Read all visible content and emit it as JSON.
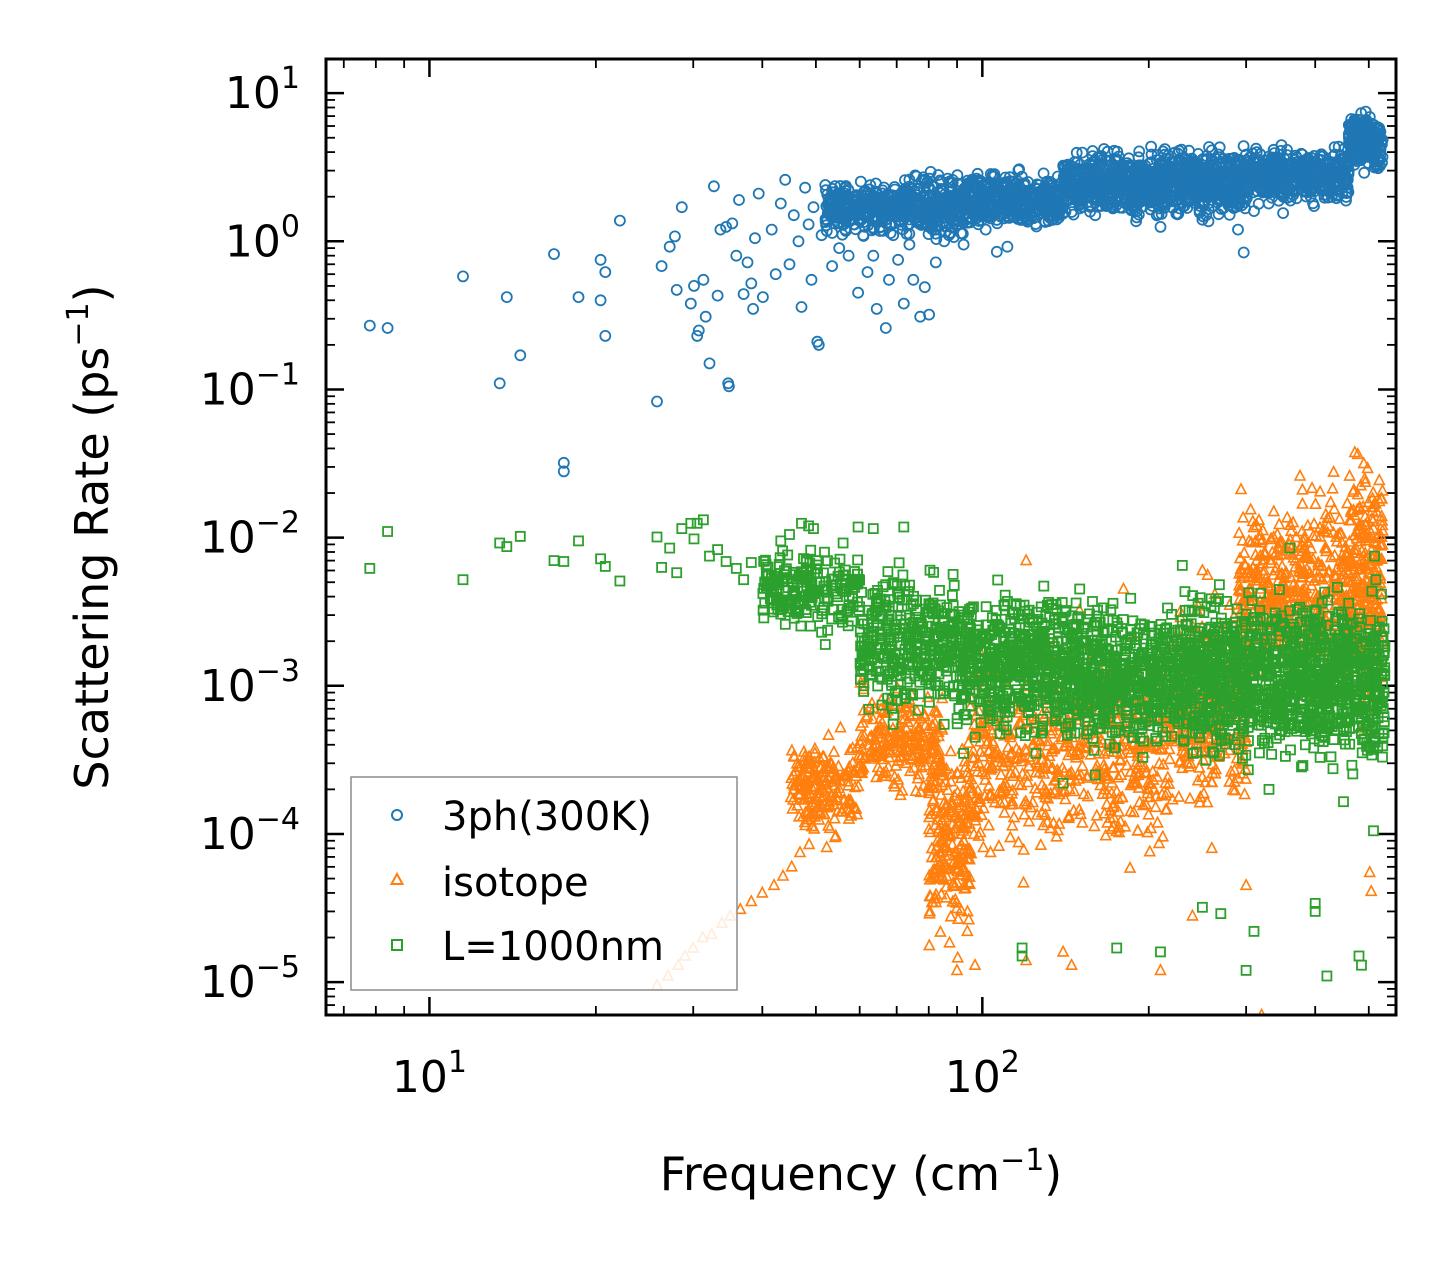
{
  "chart_data": {
    "type": "scatter",
    "title": "",
    "xlabel": "Frequency (cm",
    "xlabel_sup": "−1",
    "xlabel_tail": ")",
    "ylabel": "Scattering Rate (ps",
    "ylabel_sup": "−1",
    "ylabel_tail": ")",
    "xscale": "log",
    "yscale": "log",
    "xlim": [
      6.5,
      560
    ],
    "ylim": [
      6e-06,
      17
    ],
    "x_ticks": [
      {
        "value": 10,
        "base": "10",
        "exp": "1"
      },
      {
        "value": 100,
        "base": "10",
        "exp": "2"
      }
    ],
    "y_ticks": [
      {
        "value": 10,
        "base": "10",
        "exp": "1"
      },
      {
        "value": 1,
        "base": "10",
        "exp": "0"
      },
      {
        "value": 0.1,
        "base": "10",
        "exp": "−1"
      },
      {
        "value": 0.01,
        "base": "10",
        "exp": "−2"
      },
      {
        "value": 0.001,
        "base": "10",
        "exp": "−3"
      },
      {
        "value": 0.0001,
        "base": "10",
        "exp": "−4"
      },
      {
        "value": 1e-05,
        "base": "10",
        "exp": "−5"
      }
    ],
    "legend_position": "bottom-left",
    "series": [
      {
        "name": "3ph(300K)",
        "marker": "circle",
        "color": "#1f77b4",
        "points": [
          [
            7.8,
            0.27
          ],
          [
            8.4,
            0.26
          ],
          [
            11.5,
            0.58
          ],
          [
            13.4,
            0.11
          ],
          [
            13.8,
            0.42
          ],
          [
            14.6,
            0.17
          ],
          [
            16.8,
            0.82
          ],
          [
            17.5,
            0.032
          ],
          [
            17.5,
            0.028
          ],
          [
            18.6,
            0.42
          ],
          [
            20.4,
            0.75
          ],
          [
            20.4,
            0.4
          ],
          [
            20.8,
            0.23
          ],
          [
            20.8,
            0.62
          ],
          [
            22.1,
            1.38
          ],
          [
            25.8,
            0.083
          ],
          [
            26.3,
            0.68
          ],
          [
            27.2,
            0.92
          ],
          [
            27.8,
            1.08
          ],
          [
            28.0,
            0.47
          ],
          [
            28.6,
            1.7
          ],
          [
            29.7,
            0.38
          ],
          [
            30.1,
            0.5
          ],
          [
            30.5,
            0.23
          ],
          [
            30.7,
            0.25
          ],
          [
            31.3,
            0.55
          ],
          [
            31.6,
            0.31
          ],
          [
            32.1,
            0.15
          ],
          [
            32.7,
            2.35
          ],
          [
            33.2,
            0.43
          ],
          [
            33.6,
            1.2
          ],
          [
            34.4,
            1.25
          ],
          [
            34.7,
            0.11
          ],
          [
            34.8,
            0.105
          ],
          [
            35.3,
            1.32
          ],
          [
            35.9,
            0.8
          ],
          [
            36.3,
            1.9
          ],
          [
            37.0,
            0.44
          ],
          [
            37.6,
            0.72
          ],
          [
            38.2,
            0.52
          ],
          [
            38.5,
            0.35
          ],
          [
            38.8,
            1.05
          ],
          [
            39.4,
            2.1
          ],
          [
            40.1,
            0.42
          ],
          [
            41.6,
            1.2
          ],
          [
            42.3,
            0.6
          ],
          [
            43.2,
            1.8
          ],
          [
            44.0,
            2.6
          ],
          [
            44.8,
            0.7
          ],
          [
            45.6,
            1.5
          ],
          [
            46.5,
            1.0
          ],
          [
            47.1,
            0.36
          ],
          [
            47.8,
            2.3
          ],
          [
            48.5,
            1.3
          ],
          [
            49.1,
            0.55
          ],
          [
            49.5,
            1.7
          ],
          [
            50.3,
            0.21
          ],
          [
            50.6,
            0.2
          ],
          [
            51.2,
            1.1
          ],
          [
            52.0,
            2.4
          ],
          [
            53.5,
            0.68
          ],
          [
            54.4,
            1.5
          ],
          [
            55.1,
            0.9
          ],
          [
            56.0,
            2.0
          ],
          [
            57.3,
            0.8
          ],
          [
            58.5,
            1.3
          ],
          [
            59.6,
            0.45
          ],
          [
            60.9,
            1.1
          ],
          [
            62.0,
            0.62
          ],
          [
            63.5,
            0.8
          ],
          [
            64.4,
            0.35
          ],
          [
            65.7,
            1.4
          ],
          [
            66.9,
            0.26
          ],
          [
            67.8,
            0.55
          ],
          [
            69.0,
            1.1
          ],
          [
            70.4,
            0.75
          ],
          [
            72.1,
            0.38
          ],
          [
            73.8,
            0.95
          ],
          [
            75.0,
            0.55
          ],
          [
            77.2,
            0.31
          ],
          [
            78.7,
            0.49
          ],
          [
            80.1,
            0.32
          ],
          [
            82.4,
            0.72
          ],
          [
            85.3,
            1.0
          ],
          [
            88.0,
            1.25
          ],
          [
            92.5,
            0.95
          ],
          [
            97.1,
            1.5
          ],
          [
            101.4,
            1.2
          ],
          [
            106.2,
            0.85
          ],
          [
            111.0,
            0.92
          ],
          [
            118.0,
            1.4
          ],
          [
            125.0,
            1.6
          ],
          [
            130.0,
            1.35
          ],
          [
            140.0,
            1.7
          ],
          [
            150.0,
            1.9
          ],
          [
            160.0,
            1.5
          ],
          [
            175.0,
            2.0
          ],
          [
            190.0,
            2.2
          ],
          [
            210.0,
            1.25
          ],
          [
            230.0,
            1.8
          ],
          [
            250.0,
            1.4
          ],
          [
            270.0,
            2.4
          ],
          [
            290.0,
            1.2
          ],
          [
            297.0,
            0.84
          ],
          [
            310.0,
            1.6
          ],
          [
            330.0,
            2.5
          ],
          [
            350.0,
            1.55
          ],
          [
            380.0,
            2.2
          ],
          [
            420.0,
            2.6
          ],
          [
            460.0,
            3.0
          ]
        ],
        "bands": [
          {
            "x": [
              52,
              70
            ],
            "y": [
              1.0,
              2.8
            ],
            "n": 260
          },
          {
            "x": [
              70,
              95
            ],
            "y": [
              0.95,
              3.2
            ],
            "n": 320
          },
          {
            "x": [
              95,
              140
            ],
            "y": [
              1.05,
              3.3
            ],
            "n": 380
          },
          {
            "x": [
              140,
              200
            ],
            "y": [
              1.25,
              4.8
            ],
            "n": 420
          },
          {
            "x": [
              200,
              300
            ],
            "y": [
              1.25,
              5.0
            ],
            "n": 520
          },
          {
            "x": [
              300,
              460
            ],
            "y": [
              1.6,
              4.8
            ],
            "n": 480
          },
          {
            "x": [
              460,
              530
            ],
            "y": [
              2.6,
              8.2
            ],
            "n": 220
          }
        ]
      },
      {
        "name": "isotope",
        "marker": "triangle",
        "color": "#ff7f0e",
        "points": [
          [
            25.8,
            9.5e-06
          ],
          [
            27.0,
            1.1e-05
          ],
          [
            28.2,
            1.3e-05
          ],
          [
            29.0,
            1.5e-05
          ],
          [
            30.0,
            1.7e-05
          ],
          [
            31.2,
            2e-05
          ],
          [
            32.4,
            2.1e-05
          ],
          [
            33.8,
            2.5e-05
          ],
          [
            35.0,
            2.8e-05
          ],
          [
            36.5,
            3.1e-05
          ],
          [
            38.2,
            3.5e-05
          ],
          [
            40.0,
            4e-05
          ],
          [
            42.0,
            4.5e-05
          ],
          [
            43.6,
            5.2e-05
          ],
          [
            45.2,
            6e-05
          ],
          [
            46.8,
            7.5e-05
          ],
          [
            48.6,
            8.5e-05
          ],
          [
            90.0,
            1.2e-05
          ],
          [
            97.0,
            1.3e-05
          ],
          [
            120.0,
            1.4e-05
          ],
          [
            140.0,
            1.6e-05
          ],
          [
            145.0,
            1.3e-05
          ],
          [
            210.0,
            1.2e-05
          ],
          [
            240.0,
            2.8e-05
          ],
          [
            260.0,
            8e-05
          ],
          [
            300.0,
            4.5e-05
          ],
          [
            320.0,
            6e-06
          ],
          [
            502.0,
            5.5e-05
          ],
          [
            505.0,
            4.1e-05
          ],
          [
            330.0,
            0.0035
          ],
          [
            180.0,
            0.0045
          ],
          [
            250.0,
            0.006
          ],
          [
            280.0,
            0.0035
          ],
          [
            120.0,
            0.007
          ]
        ],
        "bands": [
          {
            "x": [
              45,
              60
            ],
            "y": [
              7e-05,
              0.0006
            ],
            "n": 200
          },
          {
            "x": [
              60,
              85
            ],
            "y": [
              0.00015,
              0.0012
            ],
            "n": 240
          },
          {
            "x": [
              80,
              95
            ],
            "y": [
              1.3e-05,
              0.0006
            ],
            "n": 220
          },
          {
            "x": [
              95,
              140
            ],
            "y": [
              4e-05,
              0.0025
            ],
            "n": 280
          },
          {
            "x": [
              140,
              220
            ],
            "y": [
              4e-05,
              0.0035
            ],
            "n": 300
          },
          {
            "x": [
              220,
              300
            ],
            "y": [
              0.0001,
              0.006
            ],
            "n": 320
          },
          {
            "x": [
              290,
              360
            ],
            "y": [
              0.0009,
              0.025
            ],
            "n": 220
          },
          {
            "x": [
              360,
              460
            ],
            "y": [
              0.0005,
              0.035
            ],
            "n": 260
          },
          {
            "x": [
              460,
              530
            ],
            "y": [
              0.0004,
              0.06
            ],
            "n": 260
          }
        ]
      },
      {
        "name": "L=1000nm",
        "marker": "square",
        "color": "#2ca02c",
        "points": [
          [
            7.8,
            0.0062
          ],
          [
            8.4,
            0.011
          ],
          [
            11.5,
            0.0052
          ],
          [
            13.4,
            0.0092
          ],
          [
            13.8,
            0.0087
          ],
          [
            14.6,
            0.0102
          ],
          [
            16.8,
            0.007
          ],
          [
            17.5,
            0.0069
          ],
          [
            18.6,
            0.0095
          ],
          [
            20.4,
            0.0072
          ],
          [
            20.8,
            0.0064
          ],
          [
            22.1,
            0.0051
          ],
          [
            25.8,
            0.0101
          ],
          [
            26.3,
            0.0063
          ],
          [
            27.2,
            0.0085
          ],
          [
            28.0,
            0.0058
          ],
          [
            28.6,
            0.0115
          ],
          [
            29.7,
            0.0125
          ],
          [
            30.1,
            0.0098
          ],
          [
            30.5,
            0.0125
          ],
          [
            31.3,
            0.0132
          ],
          [
            32.1,
            0.0075
          ],
          [
            33.2,
            0.0083
          ],
          [
            34.4,
            0.0069
          ],
          [
            35.9,
            0.0062
          ],
          [
            37.0,
            0.0052
          ],
          [
            38.2,
            0.0068
          ],
          [
            40.1,
            0.0042
          ],
          [
            41.6,
            0.0045
          ],
          [
            43.2,
            0.0095
          ],
          [
            44.8,
            0.0105
          ],
          [
            47.1,
            0.0125
          ],
          [
            48.5,
            0.012
          ],
          [
            49.5,
            0.0115
          ],
          [
            51.2,
            0.0023
          ],
          [
            52.0,
            0.0019
          ],
          [
            56.0,
            0.0092
          ],
          [
            59.6,
            0.0118
          ],
          [
            63.5,
            0.0115
          ],
          [
            66.9,
            0.0035
          ],
          [
            72.1,
            0.0118
          ],
          [
            75.0,
            0.0025
          ],
          [
            85.3,
            0.00055
          ],
          [
            92.5,
            0.00035
          ],
          [
            97.1,
            0.00045
          ],
          [
            106.2,
            0.00058
          ],
          [
            118.0,
            1.5e-05
          ],
          [
            118.0,
            1.7e-05
          ],
          [
            125.0,
            0.00035
          ],
          [
            140.0,
            0.00022
          ],
          [
            150.0,
            0.0045
          ],
          [
            160.0,
            0.00025
          ],
          [
            175.0,
            1.7e-05
          ],
          [
            210.0,
            1.6e-05
          ],
          [
            230.0,
            0.0065
          ],
          [
            250.0,
            3.2e-05
          ],
          [
            270.0,
            2.9e-05
          ],
          [
            300.0,
            1.2e-05
          ],
          [
            310.0,
            2.2e-05
          ],
          [
            330.0,
            0.0002
          ],
          [
            360.0,
            0.0085
          ],
          [
            380.0,
            0.00029
          ],
          [
            400.0,
            3e-05
          ],
          [
            400.0,
            3.4e-05
          ],
          [
            420.0,
            1.1e-05
          ],
          [
            450.0,
            0.000165
          ],
          [
            480.0,
            1.5e-05
          ],
          [
            485.0,
            1.3e-05
          ],
          [
            510.0,
            0.000105
          ],
          [
            512.0,
            0.0075
          ],
          [
            515.0,
            0.0052
          ]
        ],
        "bands": [
          {
            "x": [
              40,
              60
            ],
            "y": [
              0.002,
              0.01
            ],
            "n": 220
          },
          {
            "x": [
              60,
              90
            ],
            "y": [
              0.0005,
              0.008
            ],
            "n": 360
          },
          {
            "x": [
              90,
              140
            ],
            "y": [
              0.00035,
              0.006
            ],
            "n": 520
          },
          {
            "x": [
              140,
              230
            ],
            "y": [
              0.00028,
              0.005
            ],
            "n": 620
          },
          {
            "x": [
              230,
              360
            ],
            "y": [
              0.00022,
              0.006
            ],
            "n": 620
          },
          {
            "x": [
              360,
              535
            ],
            "y": [
              0.0002,
              0.006
            ],
            "n": 620
          }
        ]
      }
    ]
  },
  "legend": {
    "items": [
      {
        "label": "3ph(300K)",
        "marker": "circle",
        "color": "#1f77b4"
      },
      {
        "label": "isotope",
        "marker": "triangle",
        "color": "#ff7f0e"
      },
      {
        "label": "L=1000nm",
        "marker": "square",
        "color": "#2ca02c"
      }
    ]
  }
}
